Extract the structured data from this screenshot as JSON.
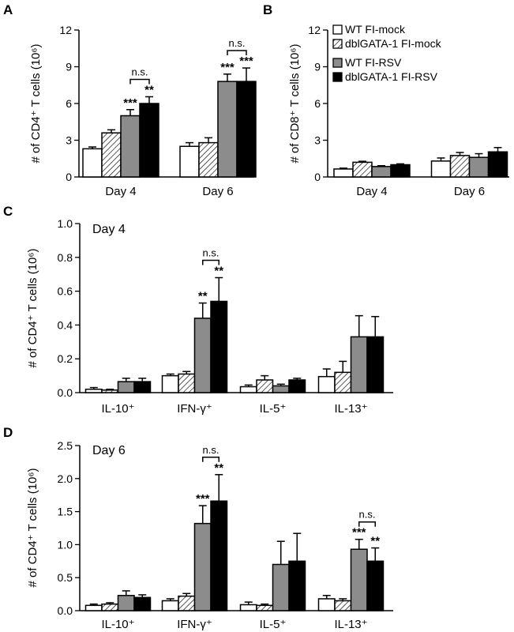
{
  "colors": {
    "wt_mock": "#ffffff",
    "dbl_mock": "hatched",
    "wt_rsv": "#8c8c8c",
    "dbl_rsv": "#000000"
  },
  "legend": [
    "WT FI-mock",
    "dblGATA-1 FI-mock",
    "WT FI-RSV",
    "dblGATA-1 FI-RSV"
  ],
  "chart_data": [
    {
      "panel": "A",
      "type": "bar",
      "ylabel": "# of CD4⁺ T cells (10⁶)",
      "ylim": [
        0,
        12
      ],
      "yticks": [
        "0",
        "3",
        "6",
        "9",
        "12"
      ],
      "categories": [
        "Day 4",
        "Day 6"
      ],
      "series": [
        {
          "name": "WT FI-mock",
          "values": [
            2.3,
            2.5
          ],
          "errors": [
            0.15,
            0.3
          ]
        },
        {
          "name": "dblGATA-1 FI-mock",
          "values": [
            3.6,
            2.8
          ],
          "errors": [
            0.25,
            0.4
          ]
        },
        {
          "name": "WT FI-RSV",
          "values": [
            5.0,
            7.8
          ],
          "errors": [
            0.5,
            0.6
          ]
        },
        {
          "name": "dblGATA-1 FI-RSV",
          "values": [
            6.0,
            7.8
          ],
          "errors": [
            0.55,
            1.1
          ]
        }
      ],
      "significance": [
        {
          "group": 0,
          "series": 2,
          "label": "***"
        },
        {
          "group": 0,
          "series": 3,
          "label": "**"
        },
        {
          "group": 1,
          "series": 2,
          "label": "***"
        },
        {
          "group": 1,
          "series": 3,
          "label": "***"
        }
      ],
      "brackets": [
        {
          "group": 0,
          "from": 2,
          "to": 3,
          "label": "n.s."
        },
        {
          "group": 1,
          "from": 2,
          "to": 3,
          "label": "n.s."
        }
      ]
    },
    {
      "panel": "B",
      "type": "bar",
      "ylabel": "# of CD8⁺ T cells (10⁶)",
      "ylim": [
        0,
        12
      ],
      "yticks": [
        "0",
        "3",
        "6",
        "9",
        "12"
      ],
      "categories": [
        "Day 4",
        "Day 6"
      ],
      "series": [
        {
          "name": "WT FI-mock",
          "values": [
            0.65,
            1.3
          ],
          "errors": [
            0.07,
            0.25
          ]
        },
        {
          "name": "dblGATA-1 FI-mock",
          "values": [
            1.2,
            1.75
          ],
          "errors": [
            0.08,
            0.25
          ]
        },
        {
          "name": "WT FI-RSV",
          "values": [
            0.85,
            1.6
          ],
          "errors": [
            0.07,
            0.3
          ]
        },
        {
          "name": "dblGATA-1 FI-RSV",
          "values": [
            1.0,
            2.05
          ],
          "errors": [
            0.07,
            0.35
          ]
        }
      ],
      "significance": [],
      "brackets": []
    },
    {
      "panel": "C",
      "type": "bar",
      "annotation": "Day 4",
      "ylabel": "# of CD4⁺ T cells (10⁶)",
      "ylim": [
        0,
        1.0
      ],
      "yticks": [
        "0.0",
        "0.2",
        "0.4",
        "0.6",
        "0.8",
        "1.0"
      ],
      "categories": [
        "IL-10⁺",
        "IFN-γ⁺",
        "IL-5⁺",
        "IL-13⁺"
      ],
      "series": [
        {
          "name": "WT FI-mock",
          "values": [
            0.02,
            0.1,
            0.035,
            0.095
          ],
          "errors": [
            0.01,
            0.01,
            0.01,
            0.045
          ]
        },
        {
          "name": "dblGATA-1 FI-mock",
          "values": [
            0.015,
            0.11,
            0.075,
            0.12
          ],
          "errors": [
            0.005,
            0.015,
            0.025,
            0.065
          ]
        },
        {
          "name": "WT FI-RSV",
          "values": [
            0.065,
            0.44,
            0.04,
            0.33
          ],
          "errors": [
            0.02,
            0.09,
            0.01,
            0.125
          ]
        },
        {
          "name": "dblGATA-1 FI-RSV",
          "values": [
            0.065,
            0.54,
            0.075,
            0.33
          ],
          "errors": [
            0.02,
            0.14,
            0.01,
            0.12
          ]
        }
      ],
      "significance": [
        {
          "group": 1,
          "series": 2,
          "label": "**"
        },
        {
          "group": 1,
          "series": 3,
          "label": "**"
        }
      ],
      "brackets": [
        {
          "group": 1,
          "from": 2,
          "to": 3,
          "label": "n.s."
        }
      ]
    },
    {
      "panel": "D",
      "type": "bar",
      "annotation": "Day 6",
      "ylabel": "# of CD4⁺ T cells (10⁶)",
      "ylim": [
        0,
        2.5
      ],
      "yticks": [
        "0.0",
        "0.5",
        "1.0",
        "1.5",
        "2.0",
        "2.5"
      ],
      "categories": [
        "IL-10⁺",
        "IFN-γ⁺",
        "IL-5⁺",
        "IL-13⁺"
      ],
      "series": [
        {
          "name": "WT FI-mock",
          "values": [
            0.08,
            0.15,
            0.09,
            0.18
          ],
          "errors": [
            0.02,
            0.03,
            0.04,
            0.05
          ]
        },
        {
          "name": "dblGATA-1 FI-mock",
          "values": [
            0.1,
            0.22,
            0.08,
            0.15
          ],
          "errors": [
            0.02,
            0.04,
            0.02,
            0.03
          ]
        },
        {
          "name": "WT FI-RSV",
          "values": [
            0.23,
            1.32,
            0.7,
            0.93
          ],
          "errors": [
            0.07,
            0.27,
            0.35,
            0.15
          ]
        },
        {
          "name": "dblGATA-1 FI-RSV",
          "values": [
            0.2,
            1.66,
            0.75,
            0.75
          ],
          "errors": [
            0.04,
            0.4,
            0.42,
            0.2
          ]
        }
      ],
      "significance": [
        {
          "group": 1,
          "series": 2,
          "label": "***"
        },
        {
          "group": 1,
          "series": 3,
          "label": "**"
        },
        {
          "group": 3,
          "series": 2,
          "label": "***"
        },
        {
          "group": 3,
          "series": 3,
          "label": "**"
        }
      ],
      "brackets": [
        {
          "group": 1,
          "from": 2,
          "to": 3,
          "label": "n.s."
        },
        {
          "group": 3,
          "from": 2,
          "to": 3,
          "label": "n.s."
        }
      ]
    }
  ]
}
